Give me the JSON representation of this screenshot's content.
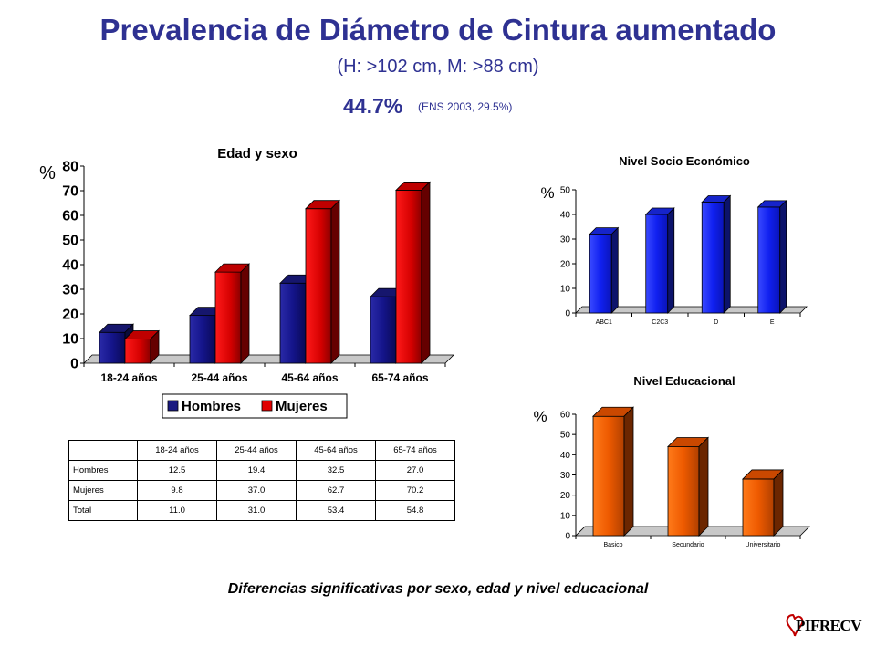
{
  "header": {
    "title": "Prevalencia de Diámetro de Cintura aumentado",
    "subtitle": "(H: >102 cm, M: >88 cm)",
    "prevalence": "44.7%",
    "ens_note": "(ENS 2003, 29.5%)"
  },
  "footer": "Diferencias significativas por sexo, edad y nivel educacional",
  "logo": {
    "text": "PIFRECV"
  },
  "colors": {
    "hombres": "#1a1a80",
    "mujeres": "#e00000",
    "nse": "#1a2aee",
    "educ": "#ee5500"
  },
  "chart_data": [
    {
      "type": "bar",
      "title": "Edad y sexo",
      "ylabel": "%",
      "categories": [
        "18-24 años",
        "25-44 años",
        "45-64 años",
        "65-74 años"
      ],
      "series": [
        {
          "name": "Hombres",
          "values": [
            12.5,
            19.4,
            32.5,
            27.0
          ]
        },
        {
          "name": "Mujeres",
          "values": [
            9.8,
            37.0,
            62.7,
            70.2
          ]
        }
      ],
      "yticks": [
        "0",
        "10",
        "20",
        "30",
        "40",
        "50",
        "60",
        "70",
        "80"
      ],
      "ylim": [
        0,
        80
      ],
      "legend": "bottom"
    },
    {
      "type": "bar",
      "title": "Nivel Socio Económico",
      "ylabel": "%",
      "categories": [
        "ABC1",
        "C2C3",
        "D",
        "E"
      ],
      "series": [
        {
          "values": [
            32,
            40,
            45,
            43
          ]
        }
      ],
      "yticks": [
        "0",
        "10",
        "20",
        "30",
        "40",
        "50"
      ],
      "ylim": [
        0,
        50
      ]
    },
    {
      "type": "bar",
      "title": "Nivel Educacional",
      "ylabel": "%",
      "categories": [
        "Basico",
        "Secundario",
        "Universitario"
      ],
      "series": [
        {
          "values": [
            59,
            44,
            28
          ]
        }
      ],
      "yticks": [
        "0",
        "10",
        "20",
        "30",
        "40",
        "50",
        "60"
      ],
      "ylim": [
        0,
        60
      ]
    }
  ],
  "table": {
    "headers": [
      "",
      "18-24 años",
      "25-44 años",
      "45-64 años",
      "65-74 años"
    ],
    "rows": [
      [
        "Hombres",
        "12.5",
        "19.4",
        "32.5",
        "27.0"
      ],
      [
        "Mujeres",
        "9.8",
        "37.0",
        "62.7",
        "70.2"
      ],
      [
        "Total",
        "11.0",
        "31.0",
        "53.4",
        "54.8"
      ]
    ]
  }
}
